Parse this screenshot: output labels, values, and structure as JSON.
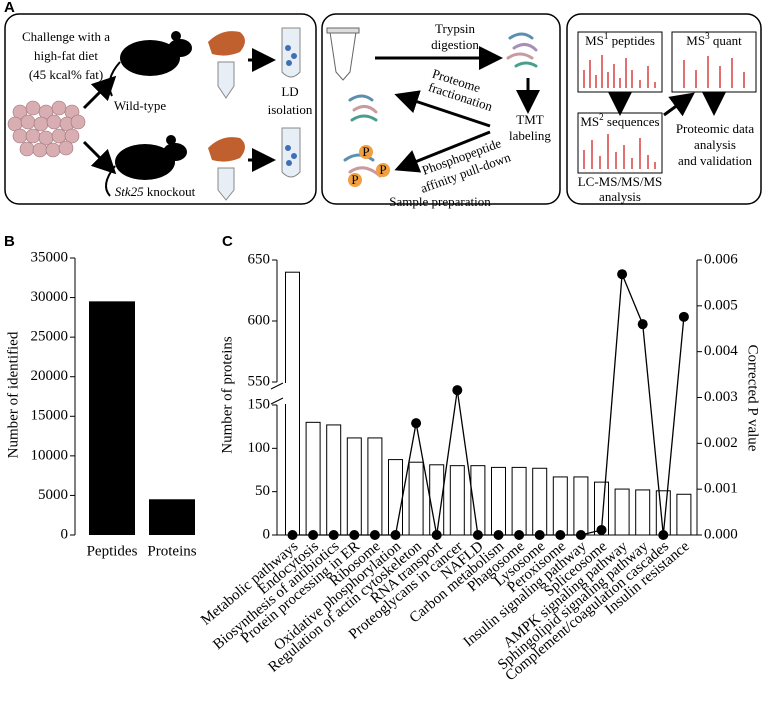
{
  "panel_a": {
    "label": "A",
    "diet": [
      "Challenge with a",
      "high-fat diet",
      "(45 kcal% fat)"
    ],
    "wild_type": "Wild-type",
    "knockout_gene": "Stk25",
    "knockout_text": "knockout",
    "ld": [
      "LD",
      "isolation"
    ],
    "trypsin": [
      "Trypsin",
      "digestion"
    ],
    "fractionation": [
      "Proteome",
      "fractionation"
    ],
    "tmt": [
      "TMT",
      "labeling"
    ],
    "pulldown": [
      "Phosphopeptide",
      "affinity pull-down"
    ],
    "sample_prep": "Sample preparation",
    "p_icon": "P",
    "ms1": {
      "base": "MS",
      "sup": "1",
      "text": " peptides"
    },
    "ms3": {
      "base": "MS",
      "sup": "3",
      "text": " quant"
    },
    "ms2": {
      "base": "MS",
      "sup": "2",
      "text": " sequences"
    },
    "lcms": [
      "LC-MS/MS/MS",
      "analysis"
    ],
    "proteomic": [
      "Proteomic data",
      "analysis",
      "and validation"
    ]
  },
  "chart_data": [
    {
      "type": "bar",
      "panel": "B",
      "ylabel": "Number of identified",
      "categories": [
        "Peptides",
        "Proteins"
      ],
      "values": [
        29523,
        4515
      ],
      "color": "#000000",
      "ylim": [
        0,
        35000
      ],
      "yticks": [
        0,
        5000,
        10000,
        15000,
        20000,
        25000,
        30000,
        35000
      ]
    },
    {
      "type": "bar_line",
      "panel": "C",
      "ylabel": "Number of proteins",
      "y2label": "Corrected P value",
      "categories": [
        "Metabolic pathways",
        "Endocytosis",
        "Biosynthesis of antibiotics",
        "Protein processing in ER",
        "Ribosome",
        "Oxidative phosphorylation",
        "Regulation of actin cytoskeleton",
        "RNA transport",
        "Proteoglycans in cancer",
        "NAFLD",
        "Carbon metabolism",
        "Phagosome",
        "Lysosome",
        "Peroxisome",
        "Insulin signaling pathway",
        "Spliceosome",
        "AMPK signaling pathway",
        "Sphingolipid signaling pathway",
        "Complement/coagulation cascades",
        "Insulin resistance"
      ],
      "series": [
        {
          "values": [
            640,
            130,
            127,
            112,
            112,
            87,
            84,
            81,
            80,
            80,
            78,
            78,
            77,
            67,
            67,
            61,
            53,
            52,
            51,
            47
          ],
          "color": "#ffffff"
        },
        {
          "values": [
            0,
            0,
            0,
            0,
            0,
            0,
            0.00244,
            0,
            0.00316,
            0,
            0,
            0,
            0,
            0,
            0,
            0.00011,
            0.00569,
            0.0046,
            0,
            0.00476
          ],
          "color": "#000000",
          "axis": "y2"
        }
      ],
      "ylim": [
        0,
        650
      ],
      "axis_break": [
        150,
        550
      ],
      "yticks": [
        0,
        50,
        100,
        150,
        550,
        600,
        650
      ],
      "y2lim": [
        0,
        0.006
      ],
      "y2ticks": [
        {
          "value": 0,
          "label": "0.000"
        },
        {
          "value": 0.001,
          "label": "0.001"
        },
        {
          "value": 0.002,
          "label": "0.002"
        },
        {
          "value": 0.003,
          "label": "0.003"
        },
        {
          "value": 0.004,
          "label": "0.004"
        },
        {
          "value": 0.005,
          "label": "0.005"
        },
        {
          "value": 0.006,
          "label": "0.006"
        }
      ]
    }
  ]
}
